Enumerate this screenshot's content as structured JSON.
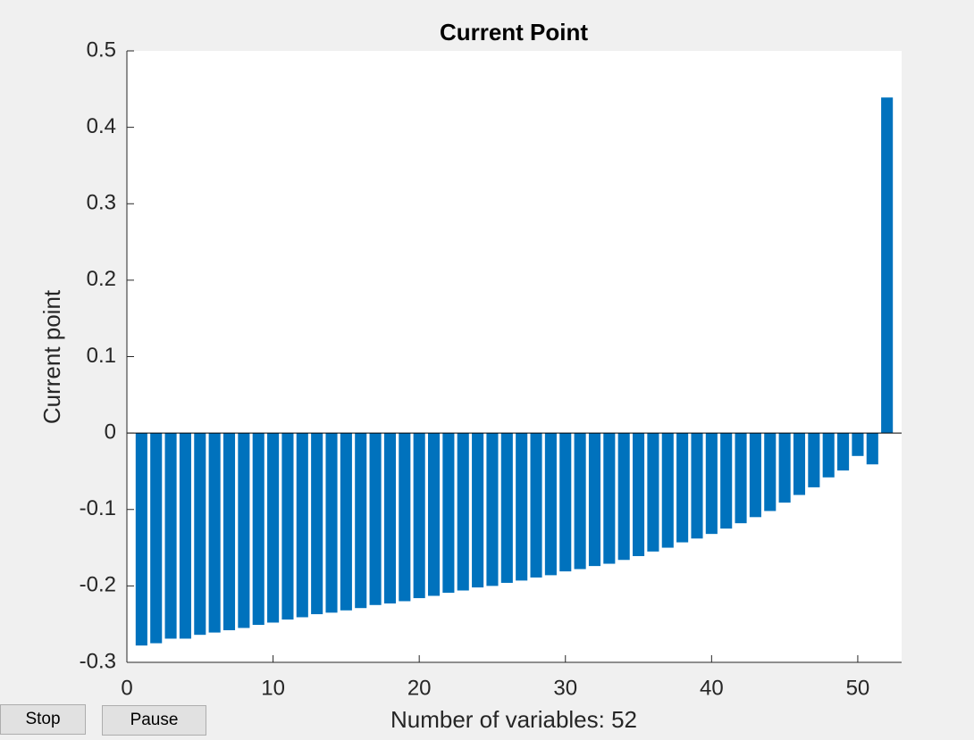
{
  "chart_data": {
    "type": "bar",
    "title": "Current Point",
    "xlabel": "Number of variables: 52",
    "ylabel": "Current point",
    "x": [
      1,
      2,
      3,
      4,
      5,
      6,
      7,
      8,
      9,
      10,
      11,
      12,
      13,
      14,
      15,
      16,
      17,
      18,
      19,
      20,
      21,
      22,
      23,
      24,
      25,
      26,
      27,
      28,
      29,
      30,
      31,
      32,
      33,
      34,
      35,
      36,
      37,
      38,
      39,
      40,
      41,
      42,
      43,
      44,
      45,
      46,
      47,
      48,
      49,
      50,
      51,
      52
    ],
    "values": [
      -0.278,
      -0.275,
      -0.269,
      -0.269,
      -0.264,
      -0.261,
      -0.258,
      -0.255,
      -0.251,
      -0.248,
      -0.244,
      -0.241,
      -0.237,
      -0.235,
      -0.232,
      -0.229,
      -0.225,
      -0.223,
      -0.22,
      -0.216,
      -0.213,
      -0.209,
      -0.206,
      -0.202,
      -0.2,
      -0.196,
      -0.193,
      -0.189,
      -0.186,
      -0.181,
      -0.178,
      -0.174,
      -0.171,
      -0.166,
      -0.161,
      -0.155,
      -0.15,
      -0.143,
      -0.138,
      -0.132,
      -0.125,
      -0.118,
      -0.11,
      -0.102,
      -0.091,
      -0.081,
      -0.071,
      -0.058,
      -0.049,
      -0.03,
      -0.041,
      0.439
    ],
    "color": "#0072bd",
    "xlim": [
      0,
      53
    ],
    "xticks": [
      0,
      10,
      20,
      30,
      40,
      50
    ],
    "ylim": [
      -0.3,
      0.5
    ],
    "yticks": [
      -0.3,
      -0.2,
      -0.1,
      0,
      0.1,
      0.2,
      0.3,
      0.4,
      0.5
    ]
  },
  "buttons": [
    "Stop",
    "Pause"
  ]
}
